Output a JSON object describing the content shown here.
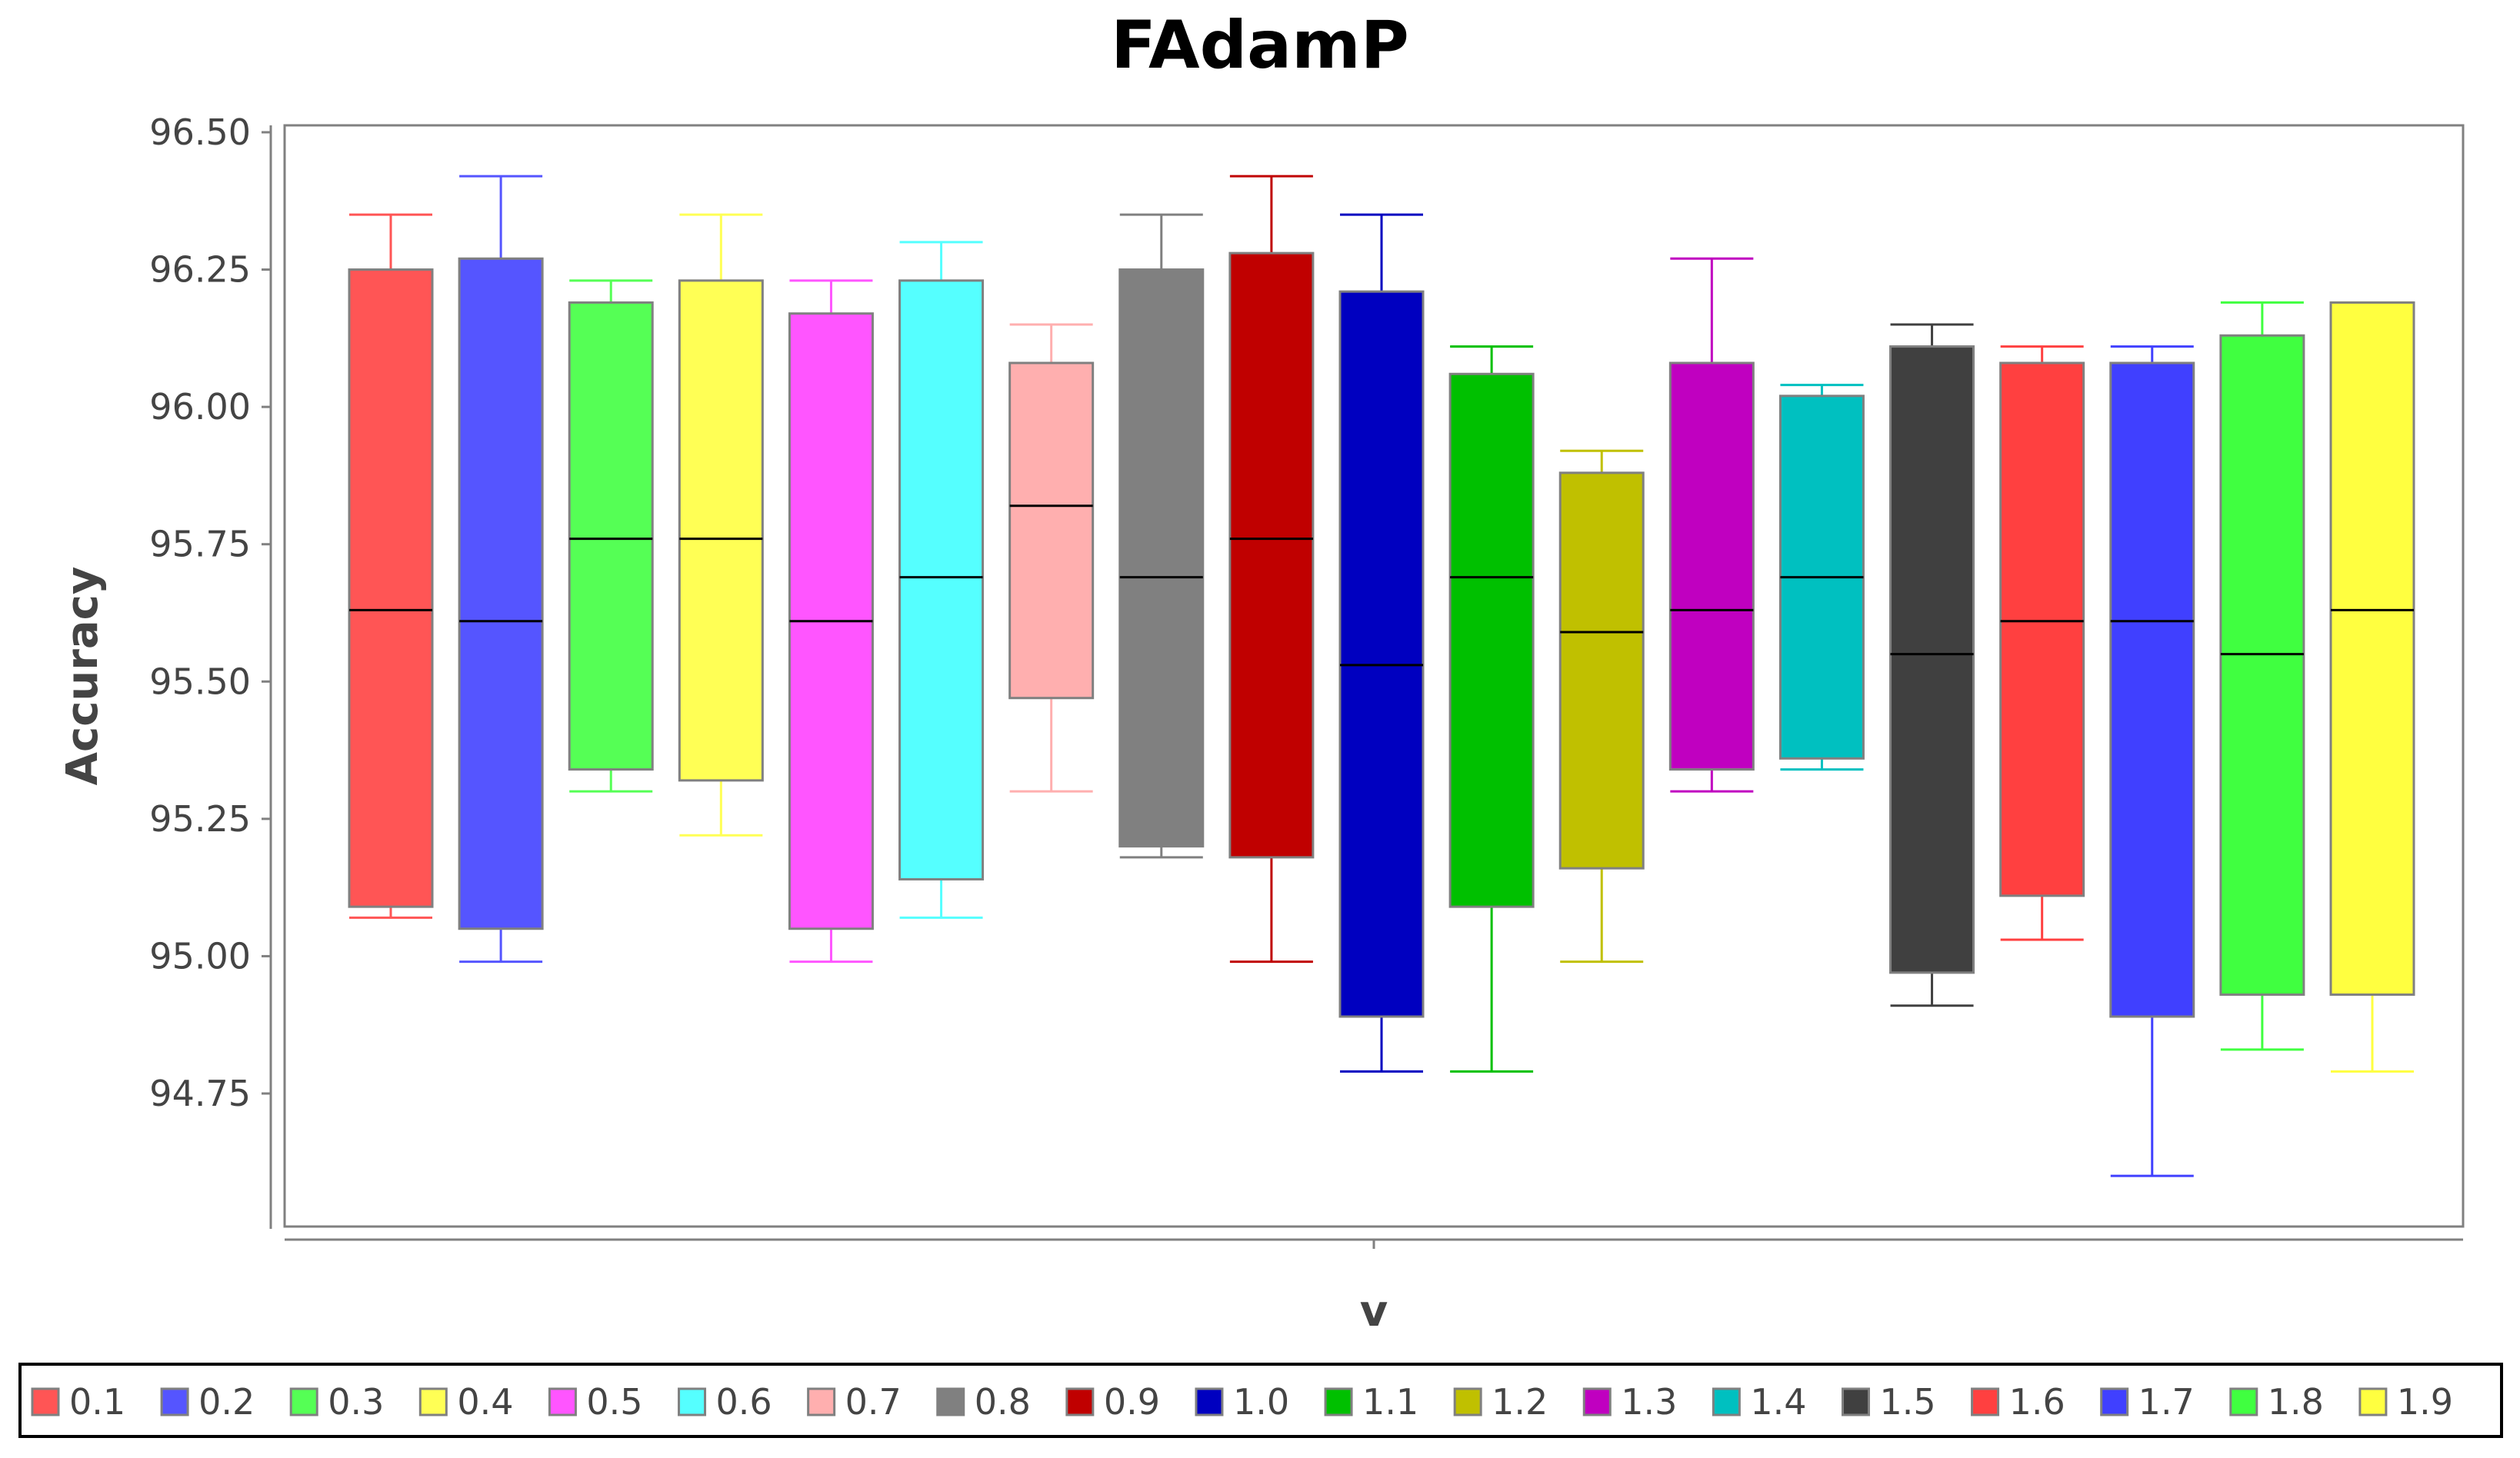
{
  "chart_data": {
    "type": "boxplot",
    "title": "FAdamP",
    "xlabel": "v",
    "ylabel": "Accuracy",
    "ylim": [
      94.45,
      96.53
    ],
    "yticks": [
      "94.75",
      "95.00",
      "95.25",
      "95.50",
      "95.75",
      "96.00",
      "96.25",
      "96.50"
    ],
    "grid": false,
    "legend_position": "bottom",
    "series": [
      {
        "name": "0.1",
        "color": "#FF5555",
        "whisker_low": 95.07,
        "q1": 95.09,
        "median": 95.63,
        "q3": 96.25,
        "whisker_high": 96.35
      },
      {
        "name": "0.2",
        "color": "#5555FF",
        "whisker_low": 94.99,
        "q1": 95.05,
        "median": 95.61,
        "q3": 96.27,
        "whisker_high": 96.42
      },
      {
        "name": "0.3",
        "color": "#55FF55",
        "whisker_low": 95.3,
        "q1": 95.34,
        "median": 95.76,
        "q3": 96.19,
        "whisker_high": 96.23
      },
      {
        "name": "0.4",
        "color": "#FFFF55",
        "whisker_low": 95.22,
        "q1": 95.32,
        "median": 95.76,
        "q3": 96.23,
        "whisker_high": 96.35
      },
      {
        "name": "0.5",
        "color": "#FF55FF",
        "whisker_low": 94.99,
        "q1": 95.05,
        "median": 95.61,
        "q3": 96.17,
        "whisker_high": 96.23
      },
      {
        "name": "0.6",
        "color": "#55FFFF",
        "whisker_low": 95.07,
        "q1": 95.14,
        "median": 95.69,
        "q3": 96.23,
        "whisker_high": 96.3
      },
      {
        "name": "0.7",
        "color": "#FFAFAF",
        "whisker_low": 95.3,
        "q1": 95.47,
        "median": 95.82,
        "q3": 96.08,
        "whisker_high": 96.15
      },
      {
        "name": "0.8",
        "color": "#808080",
        "whisker_low": 95.18,
        "q1": 95.2,
        "median": 95.69,
        "q3": 96.25,
        "whisker_high": 96.35
      },
      {
        "name": "0.9",
        "color": "#C00000",
        "whisker_low": 94.99,
        "q1": 95.18,
        "median": 95.76,
        "q3": 96.28,
        "whisker_high": 96.42
      },
      {
        "name": "1.0",
        "color": "#0000C0",
        "whisker_low": 94.79,
        "q1": 94.89,
        "median": 95.53,
        "q3": 96.21,
        "whisker_high": 96.35
      },
      {
        "name": "1.1",
        "color": "#00C000",
        "whisker_low": 94.79,
        "q1": 95.09,
        "median": 95.69,
        "q3": 96.06,
        "whisker_high": 96.11
      },
      {
        "name": "1.2",
        "color": "#C0C000",
        "whisker_low": 94.99,
        "q1": 95.16,
        "median": 95.59,
        "q3": 95.88,
        "whisker_high": 95.92
      },
      {
        "name": "1.3",
        "color": "#C000C0",
        "whisker_low": 95.3,
        "q1": 95.34,
        "median": 95.63,
        "q3": 96.08,
        "whisker_high": 96.27
      },
      {
        "name": "1.4",
        "color": "#00C0C0",
        "whisker_low": 95.34,
        "q1": 95.36,
        "median": 95.69,
        "q3": 96.02,
        "whisker_high": 96.04
      },
      {
        "name": "1.5",
        "color": "#404040",
        "whisker_low": 94.91,
        "q1": 94.97,
        "median": 95.55,
        "q3": 96.11,
        "whisker_high": 96.15
      },
      {
        "name": "1.6",
        "color": "#FF4040",
        "whisker_low": 95.03,
        "q1": 95.11,
        "median": 95.61,
        "q3": 96.08,
        "whisker_high": 96.11
      },
      {
        "name": "1.7",
        "color": "#4040FF",
        "whisker_low": 94.6,
        "q1": 94.89,
        "median": 95.61,
        "q3": 96.08,
        "whisker_high": 96.11
      },
      {
        "name": "1.8",
        "color": "#40FF40",
        "whisker_low": 94.83,
        "q1": 94.93,
        "median": 95.55,
        "q3": 96.13,
        "whisker_high": 96.19
      },
      {
        "name": "1.9",
        "color": "#FFFF40",
        "whisker_low": 94.79,
        "q1": 94.93,
        "median": 95.63,
        "q3": 96.19,
        "whisker_high": 96.19
      }
    ]
  }
}
